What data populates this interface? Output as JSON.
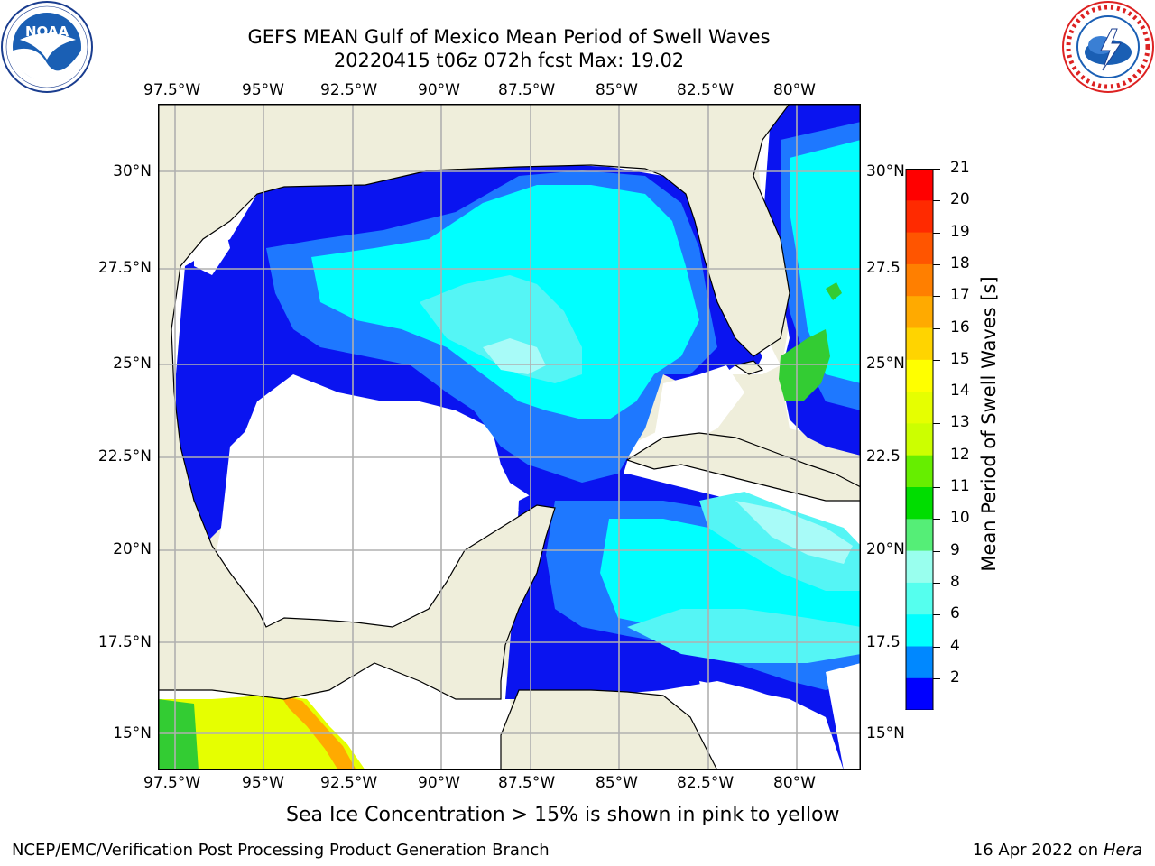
{
  "header": {
    "title_line1": "GEFS MEAN Gulf of Mexico Mean Period of Swell Waves",
    "title_line2": "20220415 t06z 072h fcst   Max: 19.02"
  },
  "logos": {
    "noaa": {
      "text": "NOAA",
      "ring_text": "NATIONAL OCEANIC AND ATMOSPHERIC ADMINISTRATION · U.S. DEPARTMENT OF COMMERCE"
    },
    "nws": {
      "ring_text": "NATIONAL WEATHER SERVICE"
    }
  },
  "axes": {
    "lon_labels": [
      "97.5°W",
      "95°W",
      "92.5°W",
      "90°W",
      "87.5°W",
      "85°W",
      "82.5°W",
      "80°W"
    ],
    "lat_labels_left": [
      "30°N",
      "27.5°N",
      "25°N",
      "22.5°N",
      "20°N",
      "17.5°N",
      "15°N"
    ],
    "lat_labels_right": [
      "30°N",
      "27.5",
      "25°N",
      "22.5",
      "20°N",
      "17.5",
      "15°N"
    ]
  },
  "colorbar": {
    "label": "Mean Period of Swell Waves [s]",
    "ticks": [
      "21",
      "20",
      "19",
      "18",
      "17",
      "16",
      "15",
      "14",
      "13",
      "12",
      "11",
      "10",
      "9",
      "8",
      "6",
      "4",
      "2"
    ],
    "colors": [
      "#ff0000",
      "#ff2a00",
      "#ff5500",
      "#ff7f00",
      "#ffaa00",
      "#ffd400",
      "#ffff00",
      "#e6ff00",
      "#ccff00",
      "#66ee00",
      "#00dd00",
      "#55ee77",
      "#99ffee",
      "#55ffee",
      "#00ffff",
      "#0088ff",
      "#0000ff"
    ],
    "extend_color": "#0000ff"
  },
  "colors": {
    "land": "#efeedb",
    "grid": "#b0b0b0",
    "deep_blue": "#0a14f0",
    "mid_blue": "#1e78ff",
    "cyan": "#00ffff",
    "light_cyan": "#55f5f5",
    "pale_cyan": "#a8fbf8",
    "green": "#33cc33"
  },
  "caption": "Sea Ice Concentration > 15% is shown in pink to yellow",
  "footer": {
    "left": "NCEP/EMC/Verification Post Processing Product Generation Branch",
    "right_date": "16 Apr 2022 on ",
    "right_machine": "Hera"
  }
}
